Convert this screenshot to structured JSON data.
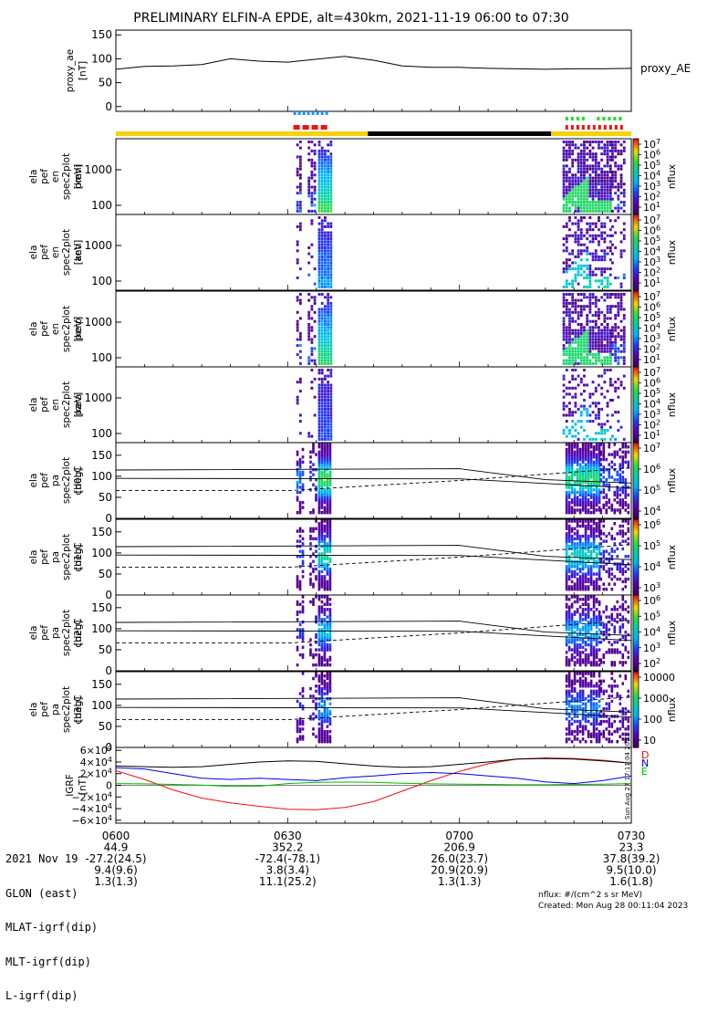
{
  "title": "PRELIMINARY ELFIN-A EPDE, alt=430km, 2021-11-19 06:00 to 07:30",
  "colors": {
    "day_sunlight": "#f5d20a",
    "night": "#000000",
    "bar_blue": "#1e90ff",
    "bar_red": "#ee1111",
    "bar_green": "#22dd22",
    "igrf_d": "#ee1111",
    "igrf_n": "#0000dd",
    "igrf_e": "#00bb00"
  },
  "chart_data": [
    {
      "type": "line",
      "panel": "proxy_ae",
      "ylabel": "proxy_ae [nT]",
      "legend": "proxy_AE",
      "ylim": [
        -10,
        160
      ],
      "yticks": [
        "150",
        "100",
        "50",
        "0"
      ],
      "x_minutes": [
        0,
        5,
        10,
        15,
        20,
        25,
        30,
        35,
        40,
        45,
        50,
        55,
        60,
        65,
        70,
        75,
        80,
        85,
        90
      ],
      "values": [
        78,
        84,
        85,
        88,
        100,
        95,
        93,
        99,
        105,
        97,
        85,
        82,
        82,
        80,
        79,
        78,
        79,
        79,
        80
      ]
    },
    {
      "type": "heatmap",
      "panel": "ela_pef_en_spec2plot_omni",
      "ylabel": "ela pef en spec2plot omni [keV]",
      "yticks": [
        "1000",
        "100"
      ],
      "colorbar": {
        "label": "nflux",
        "ticks": [
          "10^7",
          "10^6",
          "10^5",
          "10^4",
          "10^3",
          "10^2",
          "10^1"
        ]
      }
    },
    {
      "type": "heatmap",
      "panel": "ela_pef_en_spec2plot_anti",
      "ylabel": "ela pef en spec2plot anti [keV]",
      "yticks": [
        "1000",
        "100"
      ],
      "colorbar": {
        "label": "nflux",
        "ticks": [
          "10^7",
          "10^6",
          "10^5",
          "10^4",
          "10^3",
          "10^2",
          "10^1"
        ]
      }
    },
    {
      "type": "heatmap",
      "panel": "ela_pef_en_spec2plot_perp",
      "ylabel": "ela pef en spec2plot perp [keV]",
      "yticks": [
        "1000",
        "100"
      ],
      "colorbar": {
        "label": "nflux",
        "ticks": [
          "10^7",
          "10^6",
          "10^5",
          "10^4",
          "10^3",
          "10^2",
          "10^1"
        ]
      }
    },
    {
      "type": "heatmap",
      "panel": "ela_pef_en_spec2plot_para",
      "ylabel": "ela pef en spec2plot para [keV]",
      "yticks": [
        "1000",
        "100"
      ],
      "colorbar": {
        "label": "nflux",
        "ticks": [
          "10^7",
          "10^6",
          "10^5",
          "10^4",
          "10^3",
          "10^2",
          "10^1"
        ]
      }
    },
    {
      "type": "heatmap",
      "panel": "ela_pef_pa_spec2plot_ch0LC",
      "ylabel": "ela pef pa spec2plot ch0LC [deg]",
      "yticks": [
        "150",
        "100",
        "50",
        "0"
      ],
      "colorbar": {
        "label": "nflux",
        "ticks": [
          "10^7",
          "10^6",
          "10^5",
          "10^4"
        ]
      }
    },
    {
      "type": "heatmap",
      "panel": "ela_pef_pa_spec2plot_ch1LC",
      "ylabel": "ela pef pa spec2plot ch1LC [deg]",
      "yticks": [
        "150",
        "100",
        "50",
        "0"
      ],
      "colorbar": {
        "label": "nflux",
        "ticks": [
          "10^6",
          "10^5",
          "10^4",
          "10^3"
        ]
      }
    },
    {
      "type": "heatmap",
      "panel": "ela_pef_pa_spec2plot_ch2LC",
      "ylabel": "ela pef pa spec2plot ch2LC [deg]",
      "yticks": [
        "150",
        "100",
        "50",
        "0"
      ],
      "colorbar": {
        "label": "nflux",
        "ticks": [
          "10^6",
          "10^5",
          "10^4",
          "10^3",
          "10^2"
        ]
      }
    },
    {
      "type": "heatmap",
      "panel": "ela_pef_pa_spec2plot_ch3LC",
      "ylabel": "ela pef pa spec2plot ch3LC [deg]",
      "yticks": [
        "150",
        "100",
        "50",
        "0"
      ],
      "colorbar": {
        "label": "nflux",
        "ticks": [
          "10000",
          "1000",
          "100",
          "10"
        ]
      }
    },
    {
      "type": "line",
      "panel": "igrf",
      "ylabel": "IGRF [nT]",
      "ylim": [
        -65000,
        65000
      ],
      "yticks": [
        "6×10^4",
        "4×10^4",
        "2×10^4",
        "0",
        "−2×10^4",
        "−4×10^4",
        "−6×10^4"
      ],
      "x_minutes": [
        0,
        5,
        10,
        15,
        20,
        25,
        30,
        35,
        40,
        45,
        50,
        55,
        60,
        65,
        70,
        75,
        80,
        85,
        90
      ],
      "series": [
        {
          "name": "D",
          "color": "#ee1111",
          "values": [
            25000,
            10000,
            -8000,
            -22000,
            -30000,
            -36000,
            -41000,
            -42000,
            -38000,
            -28000,
            -10000,
            8000,
            24000,
            37000,
            45000,
            47000,
            46000,
            43000,
            38000
          ]
        },
        {
          "name": "N",
          "color": "#0000dd",
          "values": [
            30000,
            28000,
            20000,
            12000,
            10000,
            12000,
            10000,
            8000,
            13000,
            16000,
            20000,
            22000,
            20000,
            16000,
            12000,
            6000,
            3000,
            8000,
            16000
          ]
        },
        {
          "name": "E",
          "color": "#00bb00",
          "values": [
            3000,
            2500,
            1500,
            500,
            -2000,
            -1500,
            3000,
            5000,
            5500,
            5000,
            3500,
            2500,
            2000,
            1500,
            1000,
            1000,
            1500,
            2000,
            3000
          ]
        },
        {
          "name": "",
          "color": "#000000",
          "values": [
            33000,
            32000,
            31000,
            32000,
            36000,
            40000,
            42000,
            41000,
            37000,
            33000,
            31000,
            32000,
            36000,
            40000,
            45000,
            46000,
            45000,
            42000,
            38000
          ]
        }
      ]
    }
  ],
  "time_axis": {
    "x_minutes": [
      0,
      30,
      60,
      90
    ],
    "row_labels": [
      "2021 Nov 19",
      "GLON (east)",
      "MLAT-igrf(dip)",
      "MLT-igrf(dip)",
      "L-igrf(dip)"
    ],
    "columns": [
      {
        "time": "0600",
        "glon": "44.9",
        "mlat": "-27.2(24.5)",
        "mlt": "9.4(9.6)",
        "l": "1.3(1.3)"
      },
      {
        "time": "0630",
        "glon": "352.2",
        "mlat": "-72.4(-78.1)",
        "mlt": "3.8(3.4)",
        "l": "11.1(25.2)"
      },
      {
        "time": "0700",
        "glon": "206.9",
        "mlat": "26.0(23.7)",
        "mlt": "20.9(20.9)",
        "l": "1.3(1.3)"
      },
      {
        "time": "0730",
        "glon": "23.3",
        "mlat": "37.8(39.2)",
        "mlt": "9.5(10.0)",
        "l": "1.6(1.8)"
      }
    ]
  },
  "side_stamp": "Sun Aug 27 17:11:04 2023",
  "footer": {
    "units": "nflux: #/(cm^2 s sr MeV)",
    "created": "Created: Mon Aug 28 00:11:04 2023"
  }
}
